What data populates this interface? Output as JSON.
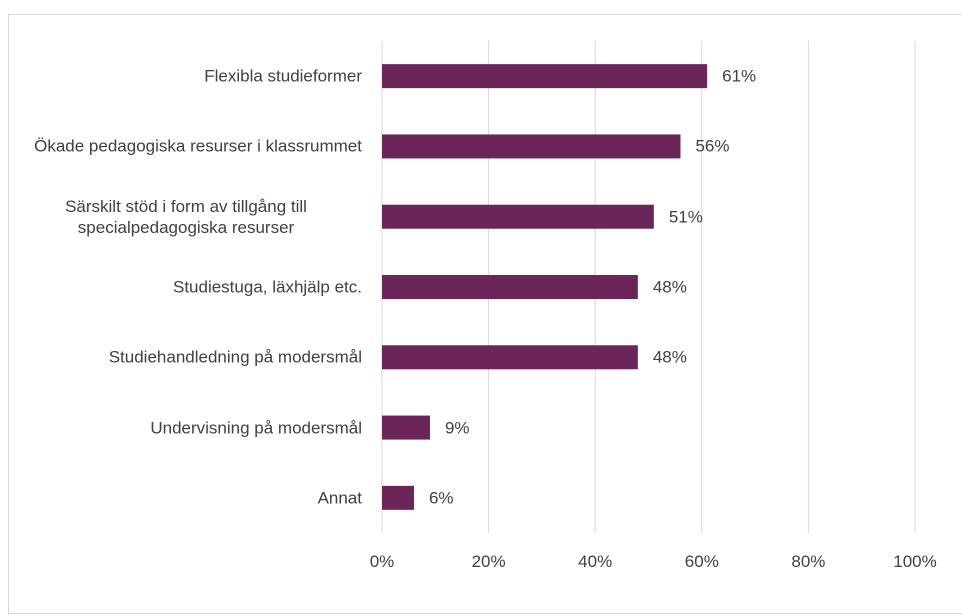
{
  "chart_data": {
    "type": "bar",
    "orientation": "horizontal",
    "categories": [
      "Flexibla studieformer",
      "Ökade pedagogiska resurser i klassrummet",
      "Särskilt stöd i form av tillgång till specialpedagogiska resurser",
      "Studiestuga, läxhjälp etc.",
      "Studiehandledning på modersmål",
      "Undervisning på modersmål",
      "Annat"
    ],
    "values": [
      61,
      56,
      51,
      48,
      48,
      9,
      6
    ],
    "value_labels": [
      "61%",
      "56%",
      "51%",
      "48%",
      "48%",
      "9%",
      "6%"
    ],
    "color": "#6b2558",
    "xlim": [
      0,
      100
    ],
    "xticks": [
      {
        "value": 0,
        "label": "0%"
      },
      {
        "value": 20,
        "label": "20%"
      },
      {
        "value": 40,
        "label": "40%"
      },
      {
        "value": 60,
        "label": "60%"
      },
      {
        "value": 80,
        "label": "80%"
      },
      {
        "value": 100,
        "label": "100%"
      }
    ],
    "grid": true
  }
}
